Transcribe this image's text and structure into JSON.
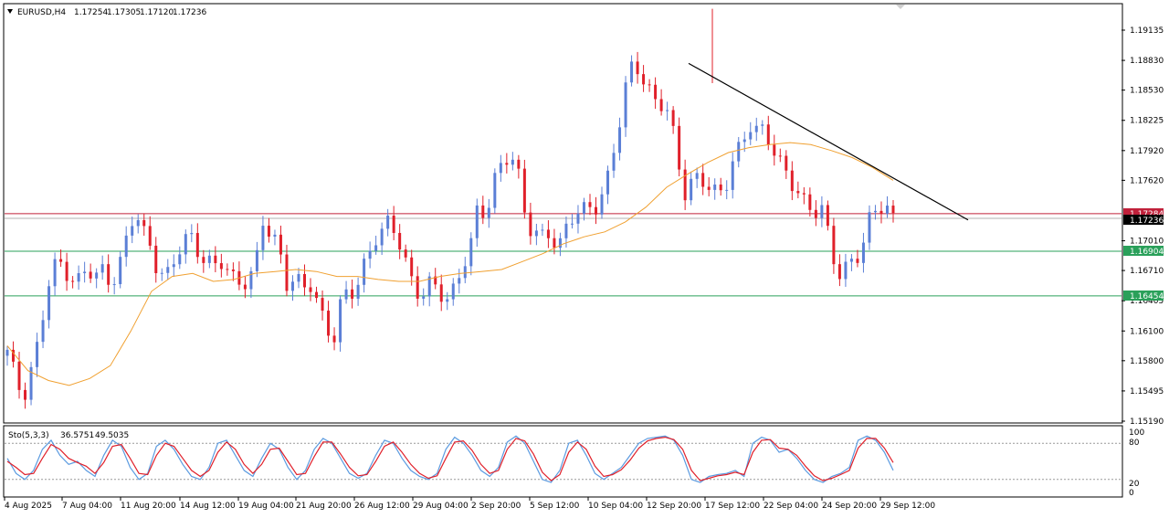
{
  "header": {
    "symbol": "EURUSD,H4",
    "open": "1.17254",
    "high": "1.17305",
    "low": "1.17120",
    "close": "1.17236"
  },
  "oscillator": {
    "label": "Sto(5,3,3)",
    "value1": "36.5751",
    "value2": "49.5035",
    "levels": [
      "100",
      "80",
      "20",
      "0"
    ]
  },
  "price_tags": {
    "red_line": "1.17284",
    "current": "1.17236",
    "green_top": "1.16904",
    "green_bottom": "1.16454"
  },
  "colors": {
    "bull": "#5b7fd6",
    "bear": "#e0202a",
    "ma": "#f0a030",
    "support": "#2aa05a",
    "resistance": "#c0203a",
    "trendline": "#000000"
  },
  "chart_data": {
    "type": "candlestick",
    "title": "EURUSD,H4",
    "ylim": [
      1.1519,
      1.1945
    ],
    "y_ticks": [
      "1.19135",
      "1.18830",
      "1.18530",
      "1.18225",
      "1.17920",
      "1.17620",
      "1.17010",
      "1.16710",
      "1.16405",
      "1.16100",
      "1.15800",
      "1.15495",
      "1.15190"
    ],
    "x_ticks": [
      "4 Aug 2025",
      "7 Aug 04:00",
      "11 Aug 20:00",
      "14 Aug 12:00",
      "19 Aug 04:00",
      "21 Aug 20:00",
      "26 Aug 12:00",
      "29 Aug 04:00",
      "2 Sep 20:00",
      "5 Sep 12:00",
      "10 Sep 04:00",
      "12 Sep 20:00",
      "17 Sep 12:00",
      "22 Sep 04:00",
      "24 Sep 20:00",
      "29 Sep 12:00"
    ],
    "horizontal_lines": [
      1.17284,
      1.16904,
      1.16454
    ],
    "trendline": {
      "from_price": 1.188,
      "to_price": 1.1722
    },
    "close_path": [
      1.1585,
      1.156,
      1.1548,
      1.1575,
      1.16,
      1.165,
      1.1672,
      1.168,
      1.1668,
      1.166,
      1.167,
      1.166,
      1.1672,
      1.1665,
      1.1675,
      1.17,
      1.1728,
      1.171,
      1.17,
      1.1672,
      1.166,
      1.1678,
      1.17,
      1.171,
      1.1695,
      1.1675,
      1.167,
      1.168,
      1.1668,
      1.1665,
      1.166,
      1.1662,
      1.172,
      1.171,
      1.17,
      1.166,
      1.1655,
      1.165,
      1.166,
      1.164,
      1.1615,
      1.16,
      1.164,
      1.165,
      1.1665,
      1.1685,
      1.17,
      1.1705,
      1.172,
      1.171,
      1.168,
      1.165,
      1.164,
      1.1655,
      1.166,
      1.1645,
      1.165,
      1.167,
      1.169,
      1.174,
      1.1735,
      1.176,
      1.1775,
      1.1785,
      1.177,
      1.173,
      1.171,
      1.17,
      1.1705,
      1.169,
      1.172,
      1.1735,
      1.1725,
      1.173,
      1.1735,
      1.176,
      1.18,
      1.183,
      1.187,
      1.1875,
      1.186,
      1.185,
      1.184,
      1.182,
      1.178,
      1.175,
      1.177,
      1.1765,
      1.175,
      1.174,
      1.176,
      1.179,
      1.18,
      1.1815,
      1.1805,
      1.1812,
      1.18,
      1.178,
      1.176,
      1.1745,
      1.1735,
      1.1738,
      1.174,
      1.17,
      1.166,
      1.167,
      1.1685,
      1.17,
      1.172,
      1.1728,
      1.1735,
      1.1724
    ],
    "ma_path": [
      1.1595,
      1.157,
      1.156,
      1.1555,
      1.1562,
      1.1575,
      1.161,
      1.165,
      1.1665,
      1.1668,
      1.166,
      1.1662,
      1.1668,
      1.167,
      1.1672,
      1.167,
      1.1665,
      1.1665,
      1.1662,
      1.166,
      1.166,
      1.1665,
      1.1668,
      1.167,
      1.1672,
      1.168,
      1.1688,
      1.1698,
      1.1705,
      1.171,
      1.172,
      1.1735,
      1.1755,
      1.1768,
      1.178,
      1.179,
      1.1795,
      1.1798,
      1.18,
      1.1798,
      1.1792,
      1.1785,
      1.1775,
      1.1762
    ],
    "stochastic_ylim": [
      0,
      100
    ],
    "stochastic_main": [
      55,
      30,
      20,
      35,
      70,
      85,
      60,
      45,
      50,
      35,
      25,
      60,
      85,
      75,
      40,
      20,
      30,
      75,
      85,
      70,
      45,
      25,
      20,
      40,
      80,
      85,
      60,
      35,
      25,
      55,
      80,
      70,
      40,
      20,
      35,
      70,
      88,
      80,
      55,
      30,
      22,
      30,
      60,
      85,
      80,
      55,
      35,
      25,
      20,
      30,
      70,
      90,
      80,
      60,
      35,
      25,
      40,
      82,
      92,
      80,
      50,
      20,
      15,
      35,
      80,
      85,
      60,
      30,
      20,
      30,
      40,
      60,
      80,
      88,
      90,
      92,
      85,
      60,
      20,
      15,
      25,
      28,
      30,
      35,
      25,
      80,
      90,
      85,
      65,
      70,
      55,
      35,
      20,
      15,
      25,
      30,
      40,
      85,
      92,
      85,
      65,
      35
    ],
    "stochastic_signal": [
      50,
      40,
      28,
      30,
      55,
      78,
      70,
      55,
      48,
      42,
      30,
      48,
      75,
      78,
      55,
      30,
      28,
      60,
      80,
      75,
      55,
      35,
      25,
      35,
      65,
      82,
      70,
      45,
      30,
      45,
      70,
      72,
      50,
      28,
      30,
      58,
      82,
      82,
      62,
      40,
      26,
      28,
      50,
      75,
      82,
      65,
      45,
      30,
      22,
      26,
      55,
      82,
      84,
      68,
      45,
      30,
      35,
      70,
      88,
      84,
      62,
      32,
      18,
      28,
      65,
      82,
      70,
      42,
      25,
      28,
      36,
      52,
      72,
      84,
      88,
      90,
      86,
      70,
      35,
      18,
      22,
      26,
      28,
      32,
      28,
      65,
      85,
      86,
      72,
      70,
      60,
      42,
      26,
      18,
      22,
      28,
      35,
      72,
      88,
      88,
      72,
      48
    ]
  }
}
